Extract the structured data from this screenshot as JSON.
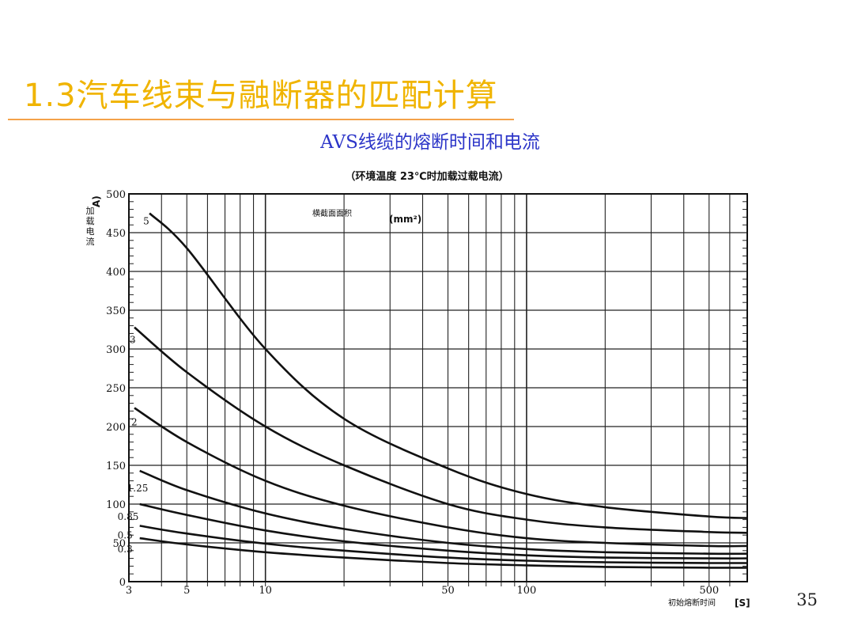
{
  "slide": {
    "title": "1.3汽车线束与融断器的匹配计算",
    "page_number": "35"
  },
  "chart_data": {
    "type": "line",
    "title": "AVS线缆的熔断时间和电流",
    "subtitle": "（环境温度 23℃时加载过载电流）",
    "xlabel": "初始熔断时间",
    "xunit": "[S]",
    "ylabel": "加载电流",
    "yunit": "A)",
    "legend_title": "横截面面积",
    "legend_unit": "(mm²)",
    "x_scale": "log",
    "xlim": [
      3,
      700
    ],
    "ylim": [
      0,
      500
    ],
    "x_tick_labels": [
      "3",
      "5",
      "10",
      "50",
      "100",
      "500"
    ],
    "x_tick_values": [
      3,
      5,
      10,
      50,
      100,
      500
    ],
    "y_ticks": [
      0,
      50,
      100,
      150,
      200,
      250,
      300,
      350,
      400,
      450,
      500
    ],
    "grid": true,
    "series": [
      {
        "name": "5",
        "points": [
          [
            3.6,
            475
          ],
          [
            5,
            430
          ],
          [
            10,
            300
          ],
          [
            20,
            210
          ],
          [
            50,
            146
          ],
          [
            100,
            113
          ],
          [
            200,
            96
          ],
          [
            500,
            84
          ],
          [
            700,
            82
          ]
        ]
      },
      {
        "name": "3",
        "points": [
          [
            3.15,
            328
          ],
          [
            5,
            270
          ],
          [
            10,
            200
          ],
          [
            20,
            150
          ],
          [
            50,
            100
          ],
          [
            100,
            80
          ],
          [
            200,
            70
          ],
          [
            500,
            64
          ],
          [
            700,
            63
          ]
        ]
      },
      {
        "name": "2",
        "points": [
          [
            3.15,
            224
          ],
          [
            5,
            180
          ],
          [
            10,
            130
          ],
          [
            20,
            98
          ],
          [
            50,
            70
          ],
          [
            100,
            56
          ],
          [
            200,
            50
          ],
          [
            500,
            46
          ],
          [
            700,
            46
          ]
        ]
      },
      {
        "name": "1.25",
        "points": [
          [
            3.3,
            143
          ],
          [
            5,
            118
          ],
          [
            10,
            88
          ],
          [
            20,
            68
          ],
          [
            50,
            50
          ],
          [
            100,
            42
          ],
          [
            200,
            38
          ],
          [
            500,
            36
          ],
          [
            700,
            36
          ]
        ]
      },
      {
        "name": "0.85",
        "points": [
          [
            3.3,
            100
          ],
          [
            5,
            86
          ],
          [
            10,
            66
          ],
          [
            20,
            52
          ],
          [
            50,
            40
          ],
          [
            100,
            34
          ],
          [
            200,
            31
          ],
          [
            500,
            30
          ],
          [
            700,
            30
          ]
        ]
      },
      {
        "name": "0.5",
        "points": [
          [
            3.3,
            72
          ],
          [
            5,
            62
          ],
          [
            10,
            49
          ],
          [
            20,
            40
          ],
          [
            50,
            31
          ],
          [
            100,
            27
          ],
          [
            200,
            25
          ],
          [
            500,
            24
          ],
          [
            700,
            24
          ]
        ]
      },
      {
        "name": "0.3",
        "points": [
          [
            3.3,
            56
          ],
          [
            5,
            48
          ],
          [
            10,
            38
          ],
          [
            20,
            31
          ],
          [
            50,
            24
          ],
          [
            100,
            21
          ],
          [
            200,
            19
          ],
          [
            500,
            18
          ],
          [
            700,
            18
          ]
        ]
      }
    ]
  }
}
